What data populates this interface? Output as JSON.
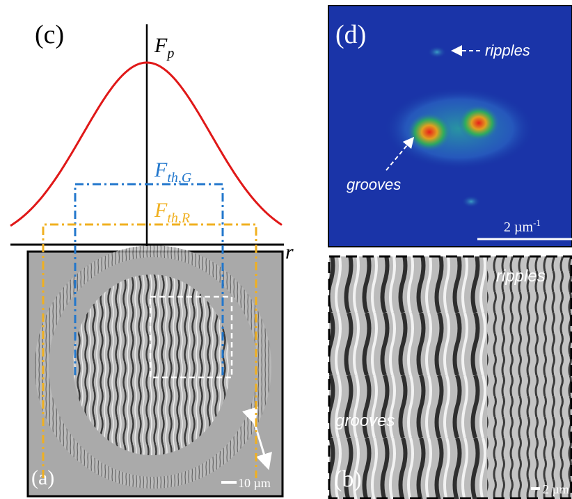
{
  "panels": {
    "c": {
      "label": "(c)",
      "peak": {
        "main": "F",
        "sub": "p"
      },
      "groove_threshold": {
        "main": "F",
        "sub": "th,G"
      },
      "ripple_threshold": {
        "main": "F",
        "sub": "th,R"
      },
      "axis": "r"
    },
    "d": {
      "label": "(d)",
      "ripples": "ripples",
      "grooves": "grooves",
      "scale": {
        "text": "2 µm",
        "sup": "-1"
      }
    },
    "a": {
      "label": "(a)",
      "scale": "10 µm"
    },
    "b": {
      "label": "(b)",
      "ripples": "ripples",
      "grooves": "grooves",
      "scale": "2 µm"
    }
  }
}
